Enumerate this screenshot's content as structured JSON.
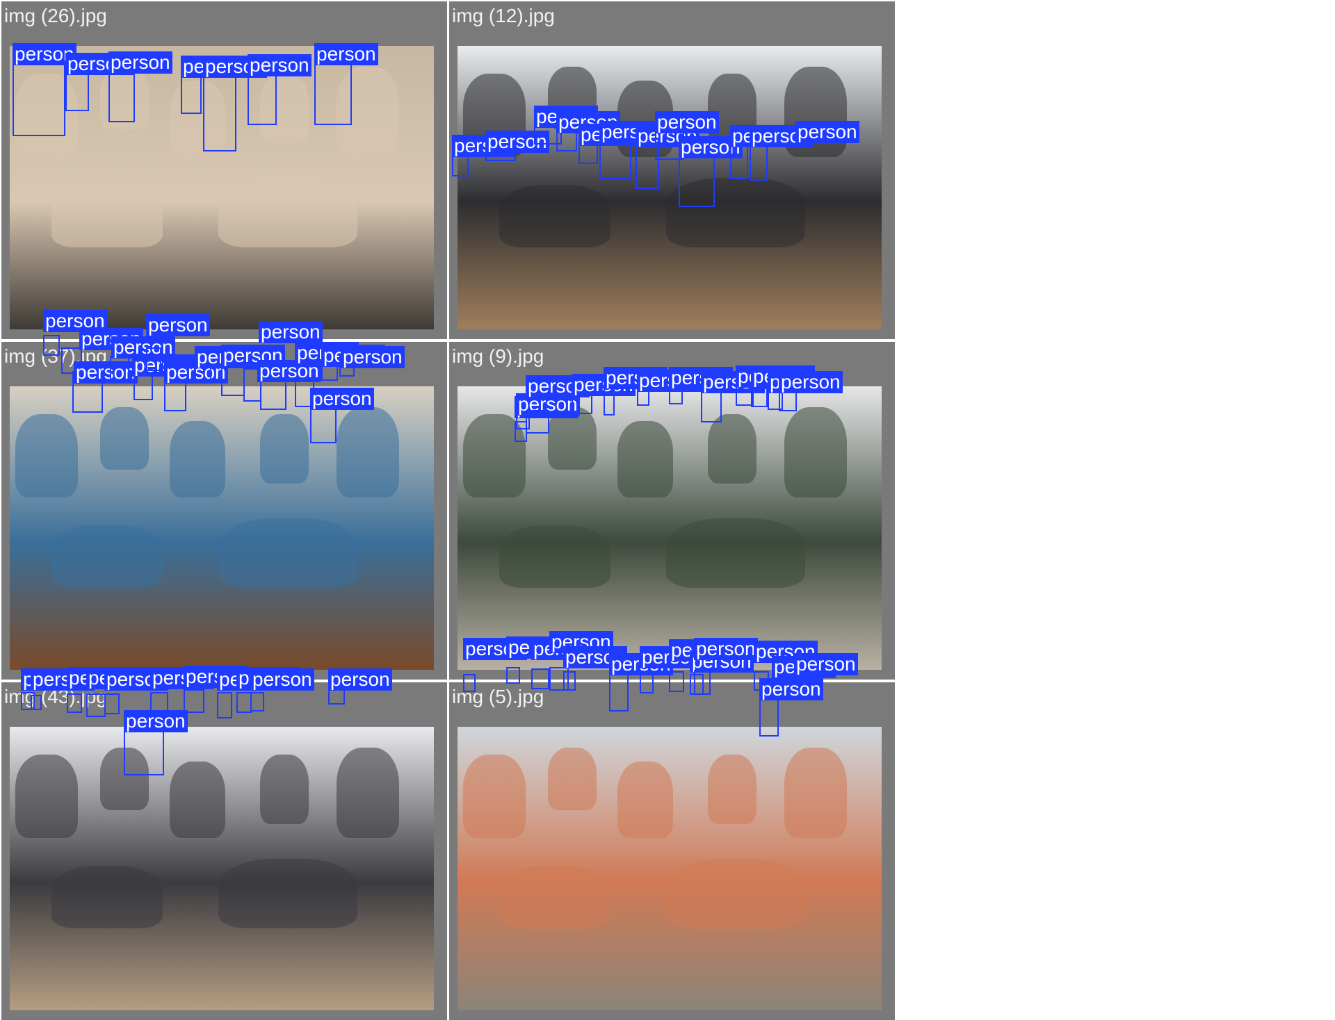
{
  "colors": {
    "tile_background": "#7a7a7a",
    "detection_box": "#1f3bff",
    "label_text": "#ffffff",
    "title_text": "#f2f2f2"
  },
  "tiles": [
    {
      "title": "img (26).jpg",
      "photo_palette": {
        "top": "#c7b8a2",
        "bottom": "#3f3a35",
        "accent": "#d9c7b1"
      },
      "detections": [
        {
          "label": "person"
        },
        {
          "label": "person"
        },
        {
          "label": "person"
        },
        {
          "label": "person"
        },
        {
          "label": "person"
        },
        {
          "label": "person"
        },
        {
          "label": "person"
        }
      ]
    },
    {
      "title": "img (12).jpg",
      "photo_palette": {
        "top": "#e9ecef",
        "bottom": "#a07f5c",
        "accent": "#2d2d30"
      },
      "detections": [
        {
          "label": "person"
        },
        {
          "label": "person"
        },
        {
          "label": "person"
        },
        {
          "label": "person"
        },
        {
          "label": "person"
        },
        {
          "label": "person"
        },
        {
          "label": "person"
        },
        {
          "label": "person"
        },
        {
          "label": "person"
        },
        {
          "label": "person"
        },
        {
          "label": "person"
        },
        {
          "label": "person"
        }
      ]
    },
    {
      "title": "img (37).jpg",
      "photo_palette": {
        "top": "#d8d0c2",
        "bottom": "#7a4a2a",
        "accent": "#3a6f9a"
      },
      "detections": [
        {
          "label": "person"
        },
        {
          "label": "person"
        },
        {
          "label": "person"
        },
        {
          "label": "person"
        },
        {
          "label": "person"
        },
        {
          "label": "person"
        },
        {
          "label": "person"
        },
        {
          "label": "person"
        },
        {
          "label": "person"
        },
        {
          "label": "person"
        },
        {
          "label": "person"
        },
        {
          "label": "person"
        },
        {
          "label": "person"
        },
        {
          "label": "person"
        },
        {
          "label": "person"
        }
      ]
    },
    {
      "title": "img (9).jpg",
      "photo_palette": {
        "top": "#e6e6e8",
        "bottom": "#b9b1a4",
        "accent": "#3d4a3d"
      },
      "detections": [
        {
          "label": "person"
        },
        {
          "label": "person"
        },
        {
          "label": "person"
        },
        {
          "label": "person"
        },
        {
          "label": "person"
        },
        {
          "label": "person"
        },
        {
          "label": "person"
        },
        {
          "label": "person"
        },
        {
          "label": "person"
        },
        {
          "label": "person"
        },
        {
          "label": "person"
        },
        {
          "label": "person"
        }
      ]
    },
    {
      "title": "img (43).jpg",
      "photo_palette": {
        "top": "#e8e9ec",
        "bottom": "#b59d82",
        "accent": "#3b3b40"
      },
      "detections": [
        {
          "label": "person"
        },
        {
          "label": "person"
        },
        {
          "label": "person"
        },
        {
          "label": "person"
        },
        {
          "label": "person"
        },
        {
          "label": "person"
        },
        {
          "label": "person"
        },
        {
          "label": "person"
        },
        {
          "label": "person"
        },
        {
          "label": "person"
        },
        {
          "label": "person"
        },
        {
          "label": "person"
        }
      ]
    },
    {
      "title": "img (5).jpg",
      "photo_palette": {
        "top": "#cfd6dc",
        "bottom": "#8c8479",
        "accent": "#d07a55"
      },
      "detections": [
        {
          "label": "person"
        },
        {
          "label": "person"
        },
        {
          "label": "person"
        },
        {
          "label": "person"
        },
        {
          "label": "person"
        },
        {
          "label": "person"
        },
        {
          "label": "person"
        },
        {
          "label": "person"
        },
        {
          "label": "person"
        },
        {
          "label": "person"
        },
        {
          "label": "person"
        },
        {
          "label": "person"
        },
        {
          "label": "person"
        },
        {
          "label": "person"
        }
      ]
    }
  ]
}
